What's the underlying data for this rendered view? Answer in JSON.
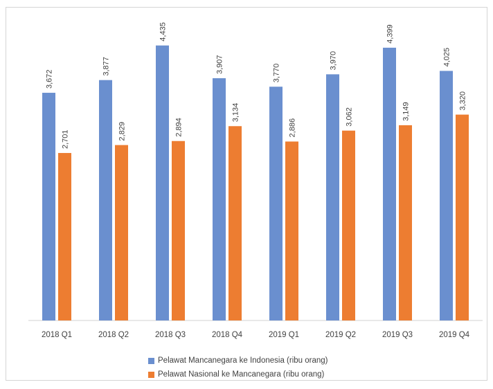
{
  "chart_data": {
    "type": "bar",
    "categories": [
      "2018 Q1",
      "2018 Q2",
      "2018 Q3",
      "2018 Q4",
      "2019 Q1",
      "2019 Q2",
      "2019 Q3",
      "2019 Q4"
    ],
    "series": [
      {
        "name": "Pelawat Mancanegara ke Indonesia (ribu orang)",
        "color": "#6a8fcf",
        "values": [
          3672,
          3877,
          4435,
          3907,
          3770,
          3970,
          4399,
          4025
        ],
        "labels": [
          "3,672",
          "3,877",
          "4,435",
          "3,907",
          "3,770",
          "3,970",
          "4,399",
          "4,025"
        ]
      },
      {
        "name": "Pelawat Nasional  ke Mancanegara (ribu orang)",
        "color": "#ed7d31",
        "values": [
          2701,
          2829,
          2894,
          3134,
          2886,
          3062,
          3149,
          3320
        ],
        "labels": [
          "2,701",
          "2,829",
          "2,894",
          "3,134",
          "2,886",
          "3,062",
          "3,149",
          "3,320"
        ]
      }
    ],
    "ylim": [
      0,
      4800
    ],
    "grid": false,
    "legend_position": "bottom"
  }
}
